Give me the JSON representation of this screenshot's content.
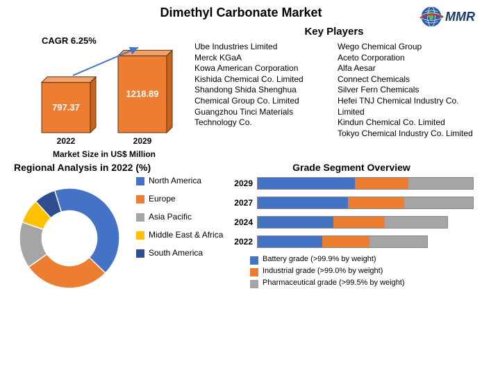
{
  "title": "Dimethyl Carbonate  Market",
  "logo_text": "MMR",
  "market_size": {
    "cagr_label": "CAGR 6.25%",
    "caption": "Market Size in US$ Million",
    "years": [
      "2022",
      "2029"
    ],
    "values": [
      797.37,
      1218.89
    ],
    "value_labels": [
      "797.37",
      "1218.89"
    ],
    "bar_color": "#ed7d31",
    "bar_border": "#5b3010",
    "value_text_color": "#ffffff",
    "arrow_color": "#4472c4",
    "max_value": 1300,
    "chart_bg": "#ffffff"
  },
  "key_players": {
    "title": "Key Players",
    "col1": [
      "Ube Industries Limited",
      "Merck KGaA",
      "Kowa American Corporation",
      "Kishida Chemical Co. Limited",
      "Shandong Shida Shenghua Chemical Group Co. Limited",
      "Guangzhou Tinci Materials Technology Co."
    ],
    "col2": [
      "Wego Chemical Group",
      "Aceto Corporation",
      "Alfa Aesar",
      "Connect Chemicals",
      "Silver Fern Chemicals",
      "Hefei TNJ Chemical Industry Co. Limited",
      "Kindun Chemical Co. Limited",
      "Tokyo Chemical Industry Co. Limited"
    ]
  },
  "regional": {
    "title": "Regional Analysis in 2022 (%)",
    "segments": [
      {
        "label": "North America",
        "value": 42,
        "color": "#4472c4"
      },
      {
        "label": "Europe",
        "value": 28,
        "color": "#ed7d31"
      },
      {
        "label": "Asia Pacific",
        "value": 15,
        "color": "#a5a5a5"
      },
      {
        "label": "Middle East & Africa",
        "value": 8,
        "color": "#ffc000"
      },
      {
        "label": "South America",
        "value": 7,
        "color": "#2e4e8e"
      }
    ],
    "inner_radius_ratio": 0.55,
    "bg": "#ffffff"
  },
  "grade": {
    "title": "Grade Segment Overview",
    "years": [
      "2029",
      "2027",
      "2024",
      "2022"
    ],
    "totals": [
      100,
      90,
      78,
      70
    ],
    "segments": [
      {
        "label": "Battery grade (>99.9% by weight)",
        "color": "#4472c4",
        "shares": [
          0.45,
          0.42,
          0.4,
          0.38
        ]
      },
      {
        "label": "Industrial grade (>99.0% by weight)",
        "color": "#ed7d31",
        "shares": [
          0.25,
          0.26,
          0.27,
          0.28
        ]
      },
      {
        "label": "Pharmaceutical grade (>99.5% by weight)",
        "color": "#a5a5a5",
        "shares": [
          0.3,
          0.32,
          0.33,
          0.34
        ]
      }
    ],
    "bar_border": "#888888",
    "max_total": 100
  }
}
